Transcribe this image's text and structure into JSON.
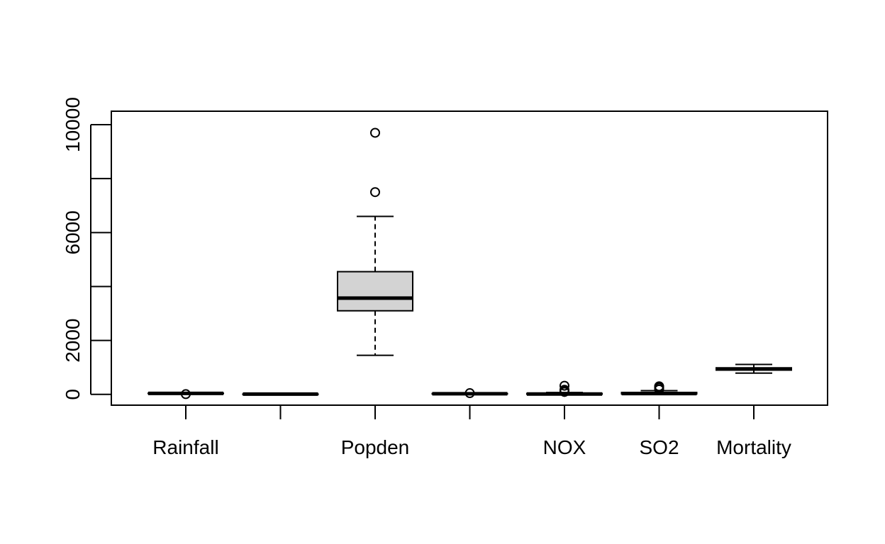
{
  "chart_data": {
    "type": "boxplot",
    "title": "",
    "xlabel": "",
    "ylabel": "",
    "ylim": [
      -400,
      10500
    ],
    "yticks": [
      0,
      2000,
      6000,
      10000
    ],
    "box_fill": "#d3d3d3",
    "stroke_color": "#000000",
    "categories": [
      "Rainfall",
      "",
      "Popden",
      "",
      "NOX",
      "SO2",
      "Mortality"
    ],
    "series": [
      {
        "label": "Rainfall",
        "whisker_low": 10,
        "q1": 32,
        "median": 38,
        "q3": 43,
        "whisker_high": 60,
        "outliers": [
          10
        ]
      },
      {
        "label": "",
        "whisker_low": 5,
        "q1": 9,
        "median": 11,
        "q3": 12,
        "whisker_high": 15,
        "outliers": []
      },
      {
        "label": "Popden",
        "whisker_low": 1450,
        "q1": 3100,
        "median": 3570,
        "q3": 4550,
        "whisker_high": 6600,
        "outliers": [
          7500,
          9700
        ]
      },
      {
        "label": "",
        "whisker_low": 10,
        "q1": 22,
        "median": 25,
        "q3": 30,
        "whisker_high": 40,
        "outliers": [
          45
        ]
      },
      {
        "label": "NOX",
        "whisker_low": 1,
        "q1": 5,
        "median": 15,
        "q3": 35,
        "whisker_high": 70,
        "outliers": [
          90,
          140,
          170,
          320
        ]
      },
      {
        "label": "SO2",
        "whisker_low": 1,
        "q1": 20,
        "median": 30,
        "q3": 70,
        "whisker_high": 140,
        "outliers": [
          180,
          240,
          280,
          300
        ]
      },
      {
        "label": "Mortality",
        "whisker_low": 790,
        "q1": 900,
        "median": 940,
        "q3": 985,
        "whisker_high": 1110,
        "outliers": []
      }
    ]
  }
}
